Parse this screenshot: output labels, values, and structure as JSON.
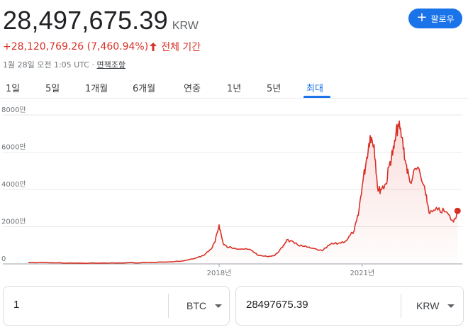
{
  "header": {
    "price": "28,497,675.39",
    "currency": "KRW",
    "change_text": "+28,120,769.26 (7,460.94%)",
    "period": "전체 기간",
    "timestamp": "1월 28일 오전 1:05 UTC",
    "separator": "·",
    "disclaimer": "면책조항",
    "follow_label": "팔로우",
    "follow_icon": "+"
  },
  "tabs": [
    {
      "label": "1일"
    },
    {
      "label": "5일"
    },
    {
      "label": "1개월"
    },
    {
      "label": "6개월"
    },
    {
      "label": "연중"
    },
    {
      "label": "1년"
    },
    {
      "label": "5년"
    },
    {
      "label": "최대",
      "active": true
    }
  ],
  "colors": {
    "line": "#d93025",
    "accent": "#1a73e8",
    "down_up_text": "#d93025"
  },
  "chart_data": {
    "type": "area",
    "x_labels": [
      "2018년",
      "2021년"
    ],
    "y_ticks": [
      "0",
      "2000만",
      "4000만",
      "6000만",
      "8000만"
    ],
    "ylim": [
      0,
      8000
    ],
    "y_unit": "만",
    "grid": true,
    "series": [
      {
        "x": [
          "2014-01",
          "2014-07",
          "2015-01",
          "2015-07",
          "2016-01",
          "2016-07",
          "2017-01",
          "2017-04",
          "2017-07",
          "2017-09",
          "2017-11",
          "2017-12",
          "2018-01",
          "2018-02",
          "2018-03",
          "2018-05",
          "2018-07",
          "2018-09",
          "2018-11",
          "2019-01",
          "2019-03",
          "2019-05",
          "2019-06",
          "2019-08",
          "2019-10",
          "2019-12",
          "2020-03",
          "2020-05",
          "2020-07",
          "2020-09",
          "2020-11",
          "2020-12",
          "2021-01",
          "2021-02",
          "2021-03",
          "2021-04",
          "2021-05",
          "2021-06",
          "2021-07",
          "2021-08",
          "2021-09",
          "2021-10",
          "2021-11",
          "2021-12",
          "2022-01",
          "2022-03",
          "2022-05",
          "2022-06",
          "2022-08",
          "2022-10",
          "2022-12",
          "2023-01"
        ],
        "values": [
          70,
          60,
          40,
          40,
          50,
          75,
          110,
          160,
          300,
          450,
          800,
          1200,
          2100,
          1100,
          900,
          850,
          800,
          750,
          450,
          400,
          450,
          900,
          1300,
          1100,
          950,
          850,
          700,
          1050,
          1100,
          1250,
          1800,
          2600,
          4200,
          5500,
          6900,
          6400,
          3900,
          4100,
          4300,
          5500,
          6200,
          7500,
          6800,
          5400,
          4400,
          5200,
          3700,
          2700,
          2900,
          2800,
          2250,
          2850
        ]
      }
    ]
  },
  "converter": {
    "from_value": "1",
    "from_unit": "BTC",
    "to_value": "28497675.39",
    "to_unit": "KRW"
  }
}
